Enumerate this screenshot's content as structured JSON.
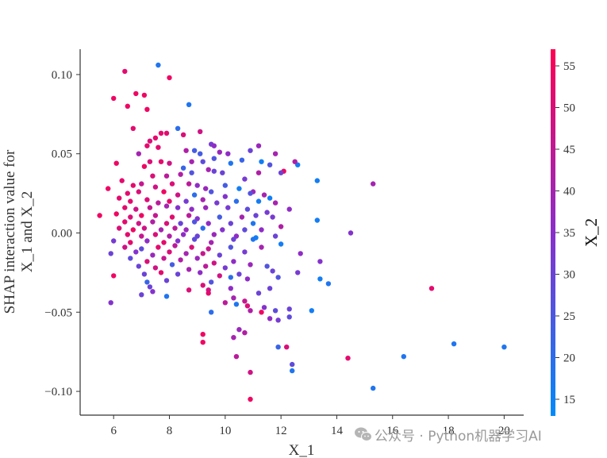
{
  "chart_data": {
    "type": "scatter",
    "title": "",
    "xlabel": "X_1",
    "ylabel_lines": [
      "SHAP interaction value for",
      "X_1 and X_2"
    ],
    "xlim": [
      4.8,
      20.7
    ],
    "ylim": [
      -0.115,
      0.116
    ],
    "xticks": [
      6,
      8,
      10,
      12,
      14,
      16,
      18,
      20
    ],
    "yticks": [
      -0.1,
      -0.05,
      0.0,
      0.05,
      0.1
    ],
    "ytick_labels": [
      "−0.10",
      "−0.05",
      "0.00",
      "0.05",
      "0.10"
    ],
    "grid": false,
    "colorbar": {
      "label": "X_2",
      "range": [
        13,
        57
      ],
      "ticks": [
        15,
        20,
        25,
        30,
        35,
        40,
        45,
        50,
        55
      ],
      "low_color": "#008afb",
      "mid_color": "#8a2ecb",
      "high_color": "#ff0052"
    },
    "points": [
      [
        7.6,
        0.106,
        18
      ],
      [
        6.4,
        0.102,
        52
      ],
      [
        8.0,
        0.098,
        54
      ],
      [
        6.8,
        0.088,
        54
      ],
      [
        6.0,
        0.085,
        54
      ],
      [
        7.1,
        0.087,
        54
      ],
      [
        6.5,
        0.08,
        54
      ],
      [
        7.2,
        0.078,
        54
      ],
      [
        8.7,
        0.081,
        18
      ],
      [
        6.7,
        0.066,
        52
      ],
      [
        8.3,
        0.066,
        20
      ],
      [
        7.7,
        0.063,
        52
      ],
      [
        7.9,
        0.063,
        52
      ],
      [
        9.1,
        0.064,
        48
      ],
      [
        7.5,
        0.06,
        52
      ],
      [
        8.5,
        0.062,
        50
      ],
      [
        7.3,
        0.058,
        50
      ],
      [
        9.5,
        0.056,
        32
      ],
      [
        9.6,
        0.055,
        36
      ],
      [
        10.1,
        0.05,
        36
      ],
      [
        11.2,
        0.055,
        38
      ],
      [
        10.9,
        0.052,
        30
      ],
      [
        7.2,
        0.055,
        52
      ],
      [
        7.6,
        0.054,
        52
      ],
      [
        8.9,
        0.052,
        24
      ],
      [
        9.1,
        0.05,
        24
      ],
      [
        9.8,
        0.051,
        38
      ],
      [
        10.6,
        0.046,
        22
      ],
      [
        8.6,
        0.052,
        42
      ],
      [
        6.9,
        0.05,
        40
      ],
      [
        7.3,
        0.045,
        50
      ],
      [
        6.1,
        0.044,
        54
      ],
      [
        7.1,
        0.042,
        54
      ],
      [
        7.7,
        0.045,
        52
      ],
      [
        8.0,
        0.044,
        48
      ],
      [
        8.8,
        0.045,
        40
      ],
      [
        9.6,
        0.047,
        26
      ],
      [
        9.2,
        0.045,
        28
      ],
      [
        10.2,
        0.044,
        18
      ],
      [
        11.3,
        0.045,
        16
      ],
      [
        11.6,
        0.043,
        26
      ],
      [
        11.8,
        0.05,
        40
      ],
      [
        12.6,
        0.043,
        16
      ],
      [
        12.1,
        0.039,
        54
      ],
      [
        12.5,
        0.045,
        42
      ],
      [
        8.5,
        0.041,
        22
      ],
      [
        9.4,
        0.04,
        40
      ],
      [
        9.9,
        0.038,
        30
      ],
      [
        7.4,
        0.036,
        50
      ],
      [
        7.9,
        0.036,
        44
      ],
      [
        8.4,
        0.037,
        42
      ],
      [
        8.8,
        0.038,
        26
      ],
      [
        9.6,
        0.039,
        30
      ],
      [
        10.7,
        0.034,
        32
      ],
      [
        11.2,
        0.038,
        42
      ],
      [
        12.0,
        0.038,
        30
      ],
      [
        13.3,
        0.033,
        16
      ],
      [
        15.3,
        0.031,
        40
      ],
      [
        5.8,
        0.028,
        54
      ],
      [
        6.3,
        0.033,
        52
      ],
      [
        6.7,
        0.03,
        52
      ],
      [
        7.0,
        0.031,
        46
      ],
      [
        7.5,
        0.029,
        48
      ],
      [
        8.1,
        0.031,
        50
      ],
      [
        8.7,
        0.031,
        44
      ],
      [
        9.0,
        0.03,
        36
      ],
      [
        9.3,
        0.028,
        38
      ],
      [
        10.0,
        0.03,
        24
      ],
      [
        10.5,
        0.028,
        16
      ],
      [
        11.0,
        0.026,
        38
      ],
      [
        11.4,
        0.024,
        40
      ],
      [
        6.5,
        0.025,
        52
      ],
      [
        6.9,
        0.026,
        50
      ],
      [
        7.8,
        0.026,
        54
      ],
      [
        8.3,
        0.024,
        48
      ],
      [
        8.9,
        0.024,
        20
      ],
      [
        9.5,
        0.026,
        26
      ],
      [
        10.0,
        0.023,
        34
      ],
      [
        10.9,
        0.025,
        26
      ],
      [
        11.6,
        0.022,
        16
      ],
      [
        6.2,
        0.022,
        52
      ],
      [
        6.6,
        0.02,
        52
      ],
      [
        7.2,
        0.021,
        50
      ],
      [
        7.6,
        0.019,
        44
      ],
      [
        8.0,
        0.02,
        52
      ],
      [
        8.6,
        0.02,
        32
      ],
      [
        9.2,
        0.021,
        40
      ],
      [
        9.7,
        0.019,
        32
      ],
      [
        10.4,
        0.02,
        20
      ],
      [
        11.2,
        0.02,
        16
      ],
      [
        11.8,
        0.019,
        40
      ],
      [
        6.4,
        0.016,
        52
      ],
      [
        6.8,
        0.015,
        48
      ],
      [
        7.3,
        0.016,
        46
      ],
      [
        7.9,
        0.017,
        40
      ],
      [
        8.3,
        0.016,
        34
      ],
      [
        8.8,
        0.015,
        36
      ],
      [
        9.3,
        0.016,
        38
      ],
      [
        10.1,
        0.016,
        32
      ],
      [
        10.8,
        0.015,
        28
      ],
      [
        11.5,
        0.013,
        32
      ],
      [
        12.3,
        0.015,
        36
      ],
      [
        6.1,
        0.012,
        54
      ],
      [
        6.6,
        0.01,
        50
      ],
      [
        7.0,
        0.011,
        54
      ],
      [
        7.5,
        0.011,
        46
      ],
      [
        8.1,
        0.01,
        52
      ],
      [
        8.7,
        0.011,
        44
      ],
      [
        9.0,
        0.009,
        34
      ],
      [
        9.8,
        0.01,
        24
      ],
      [
        10.6,
        0.01,
        40
      ],
      [
        11.1,
        0.011,
        30
      ],
      [
        11.7,
        0.01,
        32
      ],
      [
        5.5,
        0.011,
        54
      ],
      [
        6.4,
        0.007,
        52
      ],
      [
        6.9,
        0.006,
        48
      ],
      [
        7.4,
        0.007,
        42
      ],
      [
        7.9,
        0.006,
        50
      ],
      [
        8.4,
        0.006,
        30
      ],
      [
        8.9,
        0.007,
        26
      ],
      [
        9.4,
        0.006,
        36
      ],
      [
        10.2,
        0.006,
        30
      ],
      [
        11.0,
        0.006,
        18
      ],
      [
        12.0,
        0.004,
        42
      ],
      [
        13.3,
        0.008,
        16
      ],
      [
        6.2,
        0.003,
        50
      ],
      [
        6.7,
        0.002,
        54
      ],
      [
        7.1,
        0.003,
        48
      ],
      [
        7.7,
        0.002,
        40
      ],
      [
        8.2,
        0.003,
        44
      ],
      [
        8.6,
        0.002,
        38
      ],
      [
        9.2,
        0.003,
        20
      ],
      [
        9.9,
        0.002,
        34
      ],
      [
        10.7,
        0.002,
        28
      ],
      [
        11.3,
        0.002,
        36
      ],
      [
        14.5,
        0.0,
        34
      ],
      [
        6.5,
        -0.001,
        52
      ],
      [
        7.0,
        -0.002,
        46
      ],
      [
        7.5,
        -0.001,
        50
      ],
      [
        8.0,
        -0.002,
        42
      ],
      [
        8.5,
        -0.001,
        36
      ],
      [
        9.0,
        -0.002,
        30
      ],
      [
        9.6,
        -0.001,
        38
      ],
      [
        10.4,
        -0.002,
        36
      ],
      [
        11.1,
        -0.003,
        16
      ],
      [
        11.8,
        -0.002,
        30
      ],
      [
        6.0,
        -0.005,
        32
      ],
      [
        6.6,
        -0.006,
        52
      ],
      [
        7.2,
        -0.005,
        36
      ],
      [
        7.8,
        -0.006,
        52
      ],
      [
        8.3,
        -0.005,
        34
      ],
      [
        8.9,
        -0.004,
        28
      ],
      [
        9.5,
        -0.006,
        40
      ],
      [
        10.3,
        -0.004,
        30
      ],
      [
        11.0,
        -0.004,
        18
      ],
      [
        12.0,
        -0.007,
        16
      ],
      [
        6.4,
        -0.009,
        48
      ],
      [
        7.0,
        -0.01,
        28
      ],
      [
        7.6,
        -0.009,
        52
      ],
      [
        8.2,
        -0.008,
        44
      ],
      [
        8.8,
        -0.009,
        50
      ],
      [
        9.4,
        -0.01,
        46
      ],
      [
        10.2,
        -0.009,
        26
      ],
      [
        11.3,
        -0.009,
        40
      ],
      [
        5.9,
        -0.013,
        30
      ],
      [
        6.8,
        -0.012,
        34
      ],
      [
        7.4,
        -0.014,
        38
      ],
      [
        8.0,
        -0.012,
        50
      ],
      [
        8.6,
        -0.013,
        40
      ],
      [
        9.2,
        -0.013,
        46
      ],
      [
        9.8,
        -0.014,
        30
      ],
      [
        10.7,
        -0.012,
        32
      ],
      [
        12.7,
        -0.013,
        36
      ],
      [
        6.6,
        -0.016,
        28
      ],
      [
        7.2,
        -0.018,
        50
      ],
      [
        7.8,
        -0.016,
        46
      ],
      [
        8.4,
        -0.017,
        42
      ],
      [
        9.0,
        -0.016,
        38
      ],
      [
        9.6,
        -0.019,
        48
      ],
      [
        10.3,
        -0.018,
        36
      ],
      [
        13.4,
        -0.018,
        34
      ],
      [
        6.9,
        -0.021,
        30
      ],
      [
        7.5,
        -0.022,
        48
      ],
      [
        8.1,
        -0.02,
        24
      ],
      [
        8.7,
        -0.023,
        40
      ],
      [
        9.3,
        -0.021,
        44
      ],
      [
        10.0,
        -0.022,
        32
      ],
      [
        10.9,
        -0.02,
        38
      ],
      [
        11.5,
        -0.021,
        26
      ],
      [
        6.0,
        -0.027,
        54
      ],
      [
        7.1,
        -0.026,
        30
      ],
      [
        7.7,
        -0.025,
        52
      ],
      [
        8.3,
        -0.026,
        30
      ],
      [
        9.1,
        -0.025,
        36
      ],
      [
        9.8,
        -0.027,
        48
      ],
      [
        10.5,
        -0.026,
        30
      ],
      [
        11.7,
        -0.024,
        30
      ],
      [
        12.6,
        -0.025,
        32
      ],
      [
        13.4,
        -0.029,
        16
      ],
      [
        7.2,
        -0.031,
        22
      ],
      [
        7.9,
        -0.03,
        30
      ],
      [
        9.5,
        -0.031,
        26
      ],
      [
        10.2,
        -0.028,
        20
      ],
      [
        10.8,
        -0.029,
        36
      ],
      [
        11.9,
        -0.028,
        26
      ],
      [
        13.7,
        -0.032,
        18
      ],
      [
        7.3,
        -0.034,
        30
      ],
      [
        8.7,
        -0.036,
        50
      ],
      [
        9.2,
        -0.033,
        50
      ],
      [
        9.4,
        -0.036,
        48
      ],
      [
        10.2,
        -0.035,
        36
      ],
      [
        11.6,
        -0.035,
        30
      ],
      [
        7.0,
        -0.039,
        30
      ],
      [
        7.4,
        -0.037,
        34
      ],
      [
        7.9,
        -0.04,
        18
      ],
      [
        9.4,
        -0.038,
        52
      ],
      [
        10.3,
        -0.041,
        40
      ],
      [
        11.2,
        -0.038,
        30
      ],
      [
        5.9,
        -0.044,
        34
      ],
      [
        10.0,
        -0.044,
        44
      ],
      [
        10.4,
        -0.045,
        18
      ],
      [
        10.7,
        -0.043,
        46
      ],
      [
        10.8,
        -0.046,
        50
      ],
      [
        11.4,
        -0.047,
        34
      ],
      [
        12.3,
        -0.048,
        30
      ],
      [
        13.1,
        -0.049,
        16
      ],
      [
        9.5,
        -0.05,
        20
      ],
      [
        10.9,
        -0.049,
        42
      ],
      [
        11.3,
        -0.05,
        54
      ],
      [
        11.8,
        -0.049,
        28
      ],
      [
        11.9,
        -0.055,
        32
      ],
      [
        17.4,
        -0.035,
        52
      ],
      [
        11.6,
        -0.054,
        36
      ],
      [
        12.3,
        -0.053,
        28
      ],
      [
        9.2,
        -0.064,
        54
      ],
      [
        10.3,
        -0.066,
        40
      ],
      [
        9.2,
        -0.069,
        54
      ],
      [
        10.5,
        -0.061,
        38
      ],
      [
        10.7,
        -0.063,
        42
      ],
      [
        11.9,
        -0.072,
        22
      ],
      [
        12.2,
        -0.072,
        50
      ],
      [
        14.4,
        -0.079,
        52
      ],
      [
        10.4,
        -0.078,
        44
      ],
      [
        16.4,
        -0.078,
        18
      ],
      [
        18.2,
        -0.07,
        18
      ],
      [
        20.0,
        -0.072,
        18
      ],
      [
        12.4,
        -0.083,
        28
      ],
      [
        12.4,
        -0.087,
        18
      ],
      [
        10.9,
        -0.088,
        48
      ],
      [
        15.3,
        -0.098,
        18
      ],
      [
        10.9,
        -0.105,
        54
      ]
    ]
  },
  "watermark": {
    "icon_name": "wechat-icon",
    "text": "公众号 · Python机器学习AI"
  }
}
